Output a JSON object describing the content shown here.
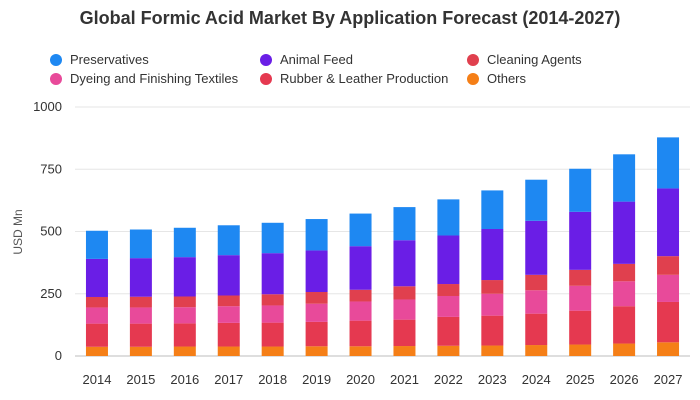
{
  "chart_data": {
    "type": "bar",
    "stacked": true,
    "title": "Global Formic Acid Market By Application Forecast (2014-2027)",
    "xlabel": "",
    "ylabel": "USD Mn",
    "ylim": [
      0,
      1000
    ],
    "yticks": [
      0,
      250,
      500,
      750,
      1000
    ],
    "categories": [
      "2014",
      "2015",
      "2016",
      "2017",
      "2018",
      "2019",
      "2020",
      "2021",
      "2022",
      "2023",
      "2024",
      "2025",
      "2026",
      "2027"
    ],
    "series": [
      {
        "name": "Others",
        "color": "#f57f17",
        "values": [
          37,
          37,
          38,
          38,
          38,
          39,
          39,
          40,
          41,
          42,
          44,
          46,
          50,
          55
        ]
      },
      {
        "name": "Rubber & Leather Production",
        "color": "#e53950",
        "values": [
          93,
          93,
          93,
          95,
          96,
          98,
          103,
          106,
          116,
          120,
          126,
          136,
          150,
          162
        ]
      },
      {
        "name": "Dyeing and Finishing Textiles",
        "color": "#e84a9a",
        "values": [
          65,
          65,
          65,
          67,
          69,
          73,
          77,
          81,
          84,
          88,
          94,
          100,
          100,
          109
        ]
      },
      {
        "name": "Cleaning Agents",
        "color": "#e0404e",
        "values": [
          42,
          43,
          43,
          43,
          45,
          47,
          47,
          53,
          48,
          55,
          62,
          64,
          70,
          75
        ]
      },
      {
        "name": "Animal Feed",
        "color": "#6a1ee6",
        "values": [
          153,
          155,
          158,
          162,
          165,
          167,
          175,
          185,
          195,
          205,
          217,
          233,
          250,
          272
        ]
      },
      {
        "name": "Preservatives",
        "color": "#1e88f2",
        "values": [
          113,
          115,
          118,
          120,
          122,
          126,
          131,
          133,
          145,
          155,
          165,
          173,
          190,
          205
        ]
      }
    ],
    "legend": [
      {
        "name": "Preservatives",
        "color": "#1e88f2"
      },
      {
        "name": "Animal Feed",
        "color": "#6a1ee6"
      },
      {
        "name": "Cleaning Agents",
        "color": "#e0404e"
      },
      {
        "name": "Dyeing and Finishing Textiles",
        "color": "#e84a9a"
      },
      {
        "name": "Rubber & Leather Production",
        "color": "#e53950"
      },
      {
        "name": "Others",
        "color": "#f57f17"
      }
    ]
  }
}
